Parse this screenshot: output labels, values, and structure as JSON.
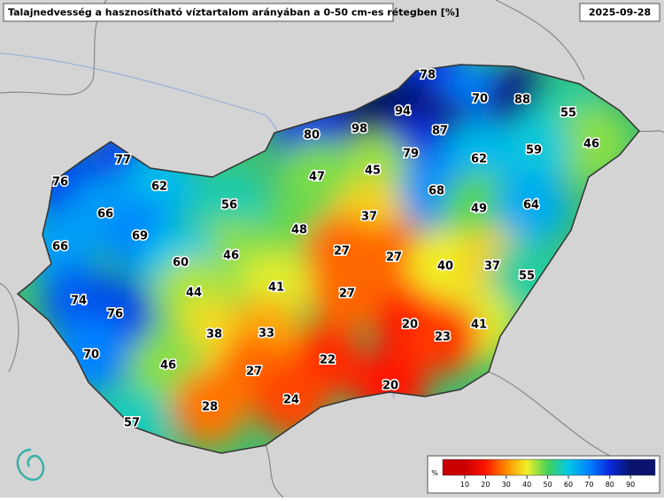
{
  "header": {
    "title": "Talajnedvesség a hasznosítható víztartalom arányában a 0-50 cm-es rétegben [%]",
    "date": "2025-09-28"
  },
  "stations": [
    78,
    70,
    88,
    94,
    55,
    98,
    87,
    80,
    46,
    59,
    79,
    62,
    77,
    45,
    47,
    76,
    62,
    68,
    56,
    49,
    64,
    66,
    37,
    48,
    69,
    66,
    27,
    27,
    46,
    60,
    40,
    37,
    41,
    44,
    27,
    55,
    74,
    76,
    20,
    41,
    23,
    38,
    33,
    70,
    22,
    46,
    27,
    20,
    24,
    28,
    57
  ],
  "legend": {
    "unit": "%",
    "ticks": [
      10,
      20,
      30,
      40,
      50,
      60,
      70,
      80,
      90
    ]
  }
}
